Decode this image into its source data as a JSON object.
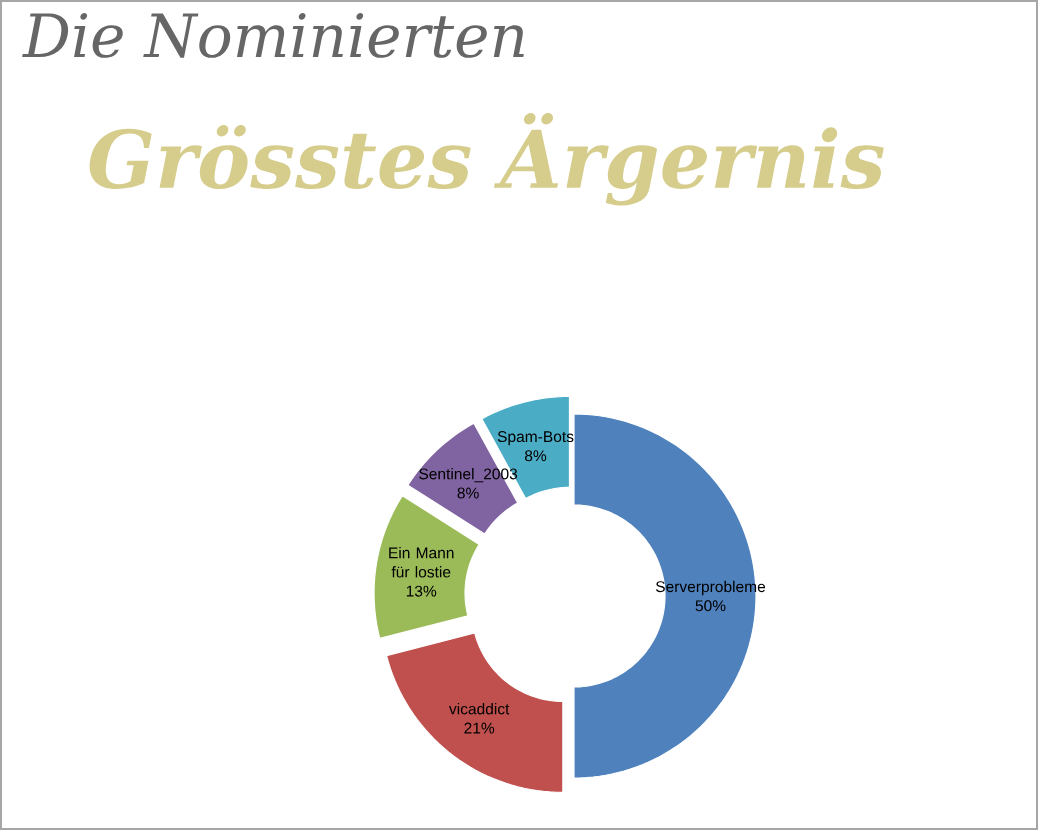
{
  "chart_data": {
    "type": "donut",
    "title": "Die Nominierten",
    "subtitle": "Grösstes Ärgernis",
    "categories": [
      "Serverprobleme",
      "vicaddict",
      "Ein Mann für lostie",
      "Sentinel_2003",
      "Spam-Bots"
    ],
    "values": [
      50,
      21,
      13,
      8,
      8
    ],
    "value_labels": [
      "50%",
      "21%",
      "13%",
      "8%",
      "8%"
    ],
    "colors": [
      "#4f81bd",
      "#c0504d",
      "#9bbb59",
      "#8064a2",
      "#4bacc6"
    ]
  }
}
